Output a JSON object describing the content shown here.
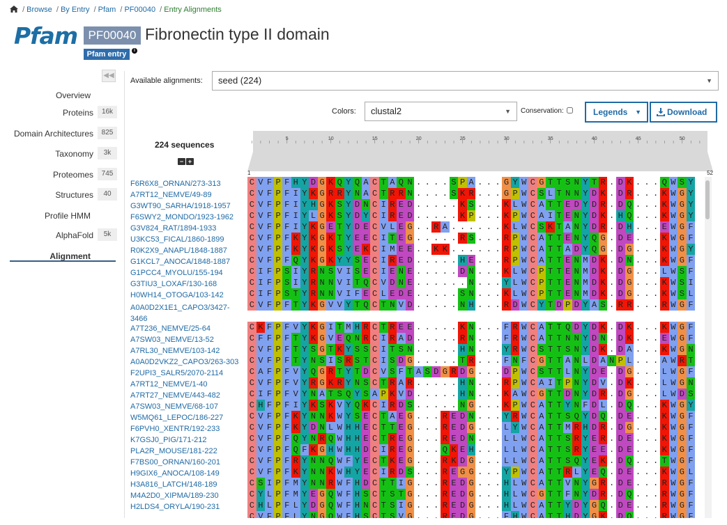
{
  "breadcrumb": {
    "items": [
      "Browse",
      "By Entry",
      "Pfam",
      "PF00040"
    ],
    "current": "Entry Alignments"
  },
  "header": {
    "logo": "Pfam",
    "accession": "PF00040",
    "title": "Fibronectin type II domain",
    "badge": "Pfam entry"
  },
  "sidebar": {
    "collapse_icon": "double-chevron-left-icon",
    "items": [
      {
        "label": "Overview",
        "count": ""
      },
      {
        "label": "Proteins",
        "count": "16k"
      },
      {
        "label": "Domain Architectures",
        "count": "825"
      },
      {
        "label": "Taxonomy",
        "count": "3k"
      },
      {
        "label": "Proteomes",
        "count": "745"
      },
      {
        "label": "Structures",
        "count": "40"
      },
      {
        "label": "Profile HMM",
        "count": ""
      },
      {
        "label": "AlphaFold",
        "count": "5k"
      },
      {
        "label": "Alignment",
        "count": "",
        "active": true
      }
    ]
  },
  "controls": {
    "available_label": "Available alignments:",
    "available_value": "seed (224)",
    "colors_label": "Colors:",
    "colors_value": "clustal2",
    "conservation_label": "Conservation:",
    "legends_label": "Legends",
    "download_label": "Download"
  },
  "alignment": {
    "sequences_label": "224 sequences",
    "ruler_ticks": [
      "5",
      "10",
      "15",
      "20",
      "25",
      "30",
      "35",
      "40",
      "45",
      "50"
    ],
    "start_label": "1",
    "end_label": "52",
    "rows": [
      {
        "label": "F6R6X8_ORNAN/273-313",
        "seq": "CVFPFHYDGKQYQACTAQN....SPA...GYWCGTTSNYTR.DK...QWSY"
      },
      {
        "label": "A7RT12_NEMVE/49-89",
        "seq": "CVFPFIYKGRRYNACTRRN....SKR...GPWCSLTNNYDK.DR...KWGY"
      },
      {
        "label": "G3WT90_SARHA/1918-1957",
        "seq": "CVFPFIYHGKSYDNCIRED.....KS...KLWCATTEDYDR.DQ...KWGY"
      },
      {
        "label": "F6SWY2_MONDO/1923-1962",
        "seq": "CVFPFIYLGKSYDYCIRED.....KP...KPWCAITENYDK.HQ...KWGY"
      },
      {
        "label": "G3V824_RAT/1894-1933",
        "seq": "CVFPFIYKGETYDECVLEG..RA......KLWCSKTANYDR.DH...EWGF"
      },
      {
        "label": "U3KC53_FICAL/1860-1899",
        "seq": "CVFPFKYKGKTYEECITEG.....RS...RPWCATTENYQG.DE...KWGF"
      },
      {
        "label": "R0K2X9_ANAPL/1848-1887",
        "seq": "CVFPFKYKGKSYEKCIMEE..KK......RPWCATTADYQG.DG...KWGY"
      },
      {
        "label": "G1KCL7_ANOCA/1848-1887",
        "seq": "CVFPFQYKGKYYSECIRED.....HE...RPWCATTENMDK.DN...KWGF"
      },
      {
        "label": "G1PCC4_MYOLU/155-194",
        "seq": "CIFPSIYRNSVISECIENE.....DN...KLWCPTTENMDK.DG...LWSF"
      },
      {
        "label": "G3TIU3_LOXAF/130-168",
        "seq": "CIFPSIYRNNVITQCVDNE......N...YLWCPTTENMDK.DG...KWSI"
      },
      {
        "label": "H0WH14_OTOGA/103-142",
        "seq": "CIFPSTYRNNVIFECLEDE.....SN...KLWCPTTENMDK.DG...KWSL"
      },
      {
        "label": "A0A0D2X1E1_CAPO3/3427-3466",
        "seq": "CVFPFTYKGVVYTQCTNVD.....NH...RDWCYTDPDYAS.RR...RWGF",
        "wrap": true
      },
      {
        "label": "A7T236_NEMVE/25-64",
        "seq": "CKFPFVYKGITMHRCTREE.....KN...FRWCATTQDYDK.DK...KWGF"
      },
      {
        "label": "A7SW03_NEMVE/13-52",
        "seq": "CFFPFTYKGVEQNRCIRAD.....RN...FRWCATTNNYDN.DK...EWGF"
      },
      {
        "label": "A7RL30_NEMVE/103-142",
        "seq": "CVFPFTYSGTKYSSCITSN.....HN...YRWCSTTSNYDK.DA...KWGN"
      },
      {
        "label": "A0A0D2VKZ2_CAPO3/263-303",
        "seq": "CVFPFTYNSISRSTCISDG.....TR...FNFCGTTANLDANPL...AWRT"
      },
      {
        "label": "F2UPI3_SALR5/2070-2114",
        "seq": "CAFPFVYQGRTYTDCVSFTASDGRDG...DPWCSTTLNYDE.DG...LWGF"
      },
      {
        "label": "A7RT12_NEMVE/1-40",
        "seq": "CVFPFVYRGKRYNSCTRAR.....HN...RPWCAITPNYDV.DK...LWGN"
      },
      {
        "label": "A7RT27_NEMVE/443-482",
        "seq": "CIFPFVYNATSQYSAPKVD.....HN...KAWCGTTDNYDR.DG...LWDS"
      },
      {
        "label": "A7SW03_NEMVE/68-107",
        "seq": "CHFPFIYKSKVYQKCIRDS.....NG...KPWCATTYNFDL.DQ...KWGY"
      },
      {
        "label": "W5MQ61_LEPOC/186-227",
        "seq": "CVFPFKYNNKWYSECTAEG...REDN...YRWCATTSQYDQ.DE...KWGF"
      },
      {
        "label": "F6PVH0_XENTR/192-233",
        "seq": "CVFPFKYDNLWHHECTTEG...REDG...LYWCATTMRHDR.DG...KWGF"
      },
      {
        "label": "K7GSJ0_PIG/171-212",
        "seq": "CVFPFQYNRQWHHECTREG...REDN...LLWCATTSRYER.DE...KWGF"
      },
      {
        "label": "PLA2R_MOUSE/181-222",
        "seq": "CVFPFQFKGHWHHDCIREG...QKEH...LLWCATTSRYEE.DE...KWGF"
      },
      {
        "label": "F7BS00_ORNAN/160-201",
        "seq": "CVFPFRYNNQWFYECTKEG...RKDG...LLWCATTSQYEK.DQ...TWGF"
      },
      {
        "label": "H9GIX6_ANOCA/108-149",
        "seq": "CVFPFKYNNKWHYECIRDS...REGG...YPWCATTRLYEQ.DE...KWGL"
      },
      {
        "label": "H3A816_LATCH/148-189",
        "seq": "CSIPFMYNNRWFHDCTTIG...REDG...HLWCATTVNYGR.DE...RWGF"
      },
      {
        "label": "M4A2D0_XIPMA/189-230",
        "seq": "CYLPFMYEGQWFHSCTSTG...REDG...HLWCGTTFNYDR.DQ...RWGF"
      },
      {
        "label": "H2LDS4_ORYLA/190-231",
        "seq": "CHLPFLYDGQWFHNCTSIG...REDG...HLWCATTYDYGQ.DE...RWGF"
      },
      {
        "label": "",
        "seq": "CVFPFLYNGQWFHSCTSVG...REDG...FHWCATTHDYGK.DQ...RWGF"
      }
    ],
    "colors": {
      "hydrophobic": "#80a0f0",
      "cysteine": "#f08080",
      "positive": "#f01505",
      "negative": "#c048c0",
      "polar": "#15c015",
      "aromatic": "#15a4a4",
      "glycine": "#f09048",
      "proline": "#c0c000",
      "gap": "#ffffff"
    }
  }
}
